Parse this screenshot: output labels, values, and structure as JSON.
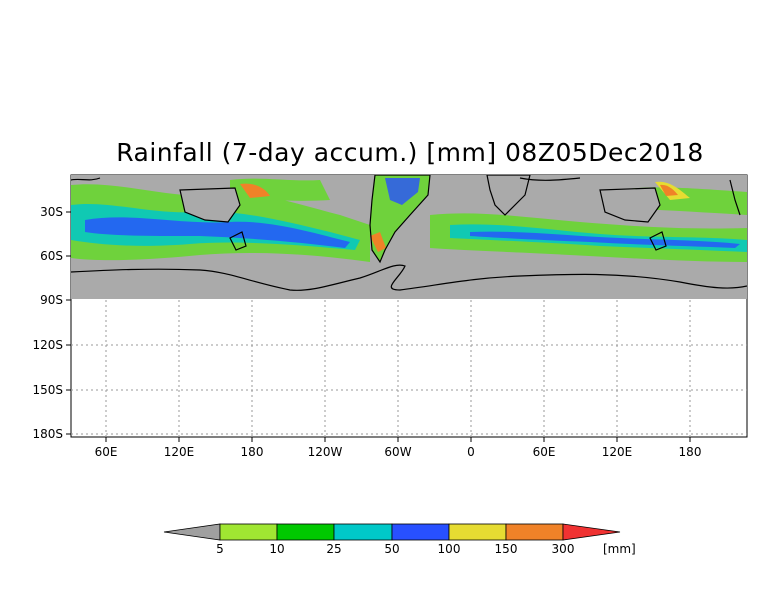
{
  "title": "Rainfall (7-day accum.) [mm] 08Z05Dec2018",
  "map": {
    "lat_labels": [
      "30S",
      "60S",
      "90S",
      "120S",
      "150S",
      "180S"
    ],
    "lon_labels": [
      "60E",
      "120E",
      "180",
      "120W",
      "60W",
      "0",
      "60E",
      "120E",
      "180"
    ],
    "land_color": "#aaaaaa",
    "coastline_color": "#000000",
    "grid": "dotted"
  },
  "legend": {
    "levels": [
      "5",
      "10",
      "25",
      "50",
      "100",
      "150",
      "300"
    ],
    "unit": "[mm]",
    "colors": [
      "#a0a0a0",
      "#a0e632",
      "#00c800",
      "#00c8c8",
      "#2850ff",
      "#e6dc32",
      "#f08228",
      "#f03232"
    ]
  }
}
